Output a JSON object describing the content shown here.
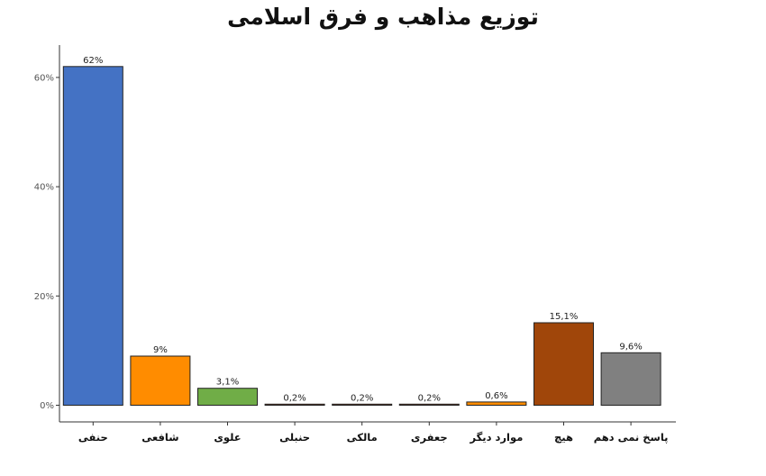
{
  "chart_data": {
    "type": "bar",
    "title": "توزیع مذاهب و فرق اسلامی",
    "xlabel": "",
    "ylabel": "",
    "ylim": [
      0,
      64
    ],
    "y_ticks": [
      0,
      20,
      40,
      60
    ],
    "y_tick_labels": [
      "0%",
      "20%",
      "40%",
      "60%"
    ],
    "grid": false,
    "legend": "none",
    "categories": [
      "حنفی",
      "شافعی",
      "علوی",
      "حنبلی",
      "مالکی",
      "جعفری",
      "موارد دیگر",
      "هیچ",
      "پاسخ نمی دهم"
    ],
    "values": [
      62,
      9,
      3.1,
      0.2,
      0.2,
      0.2,
      0.6,
      15.1,
      9.6
    ],
    "value_labels": [
      "62%",
      "9%",
      "3,1%",
      "0,2%",
      "0,2%",
      "0,2%",
      "0,6%",
      "15,1%",
      "9,6%"
    ],
    "colors": [
      "#4472C4",
      "#FF8C00",
      "#70AD47",
      "#A0522D",
      "#A0522D",
      "#A0522D",
      "#FF8C00",
      "#A0460A",
      "#808080"
    ]
  }
}
